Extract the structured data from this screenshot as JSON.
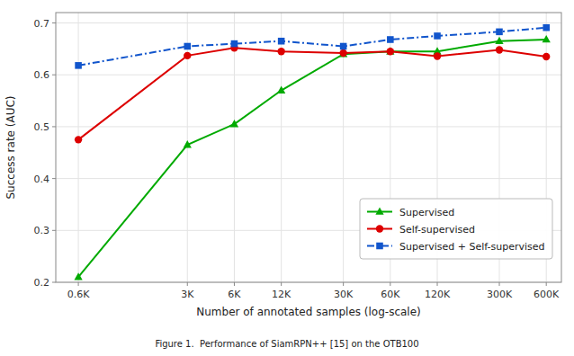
{
  "chart_data": {
    "type": "line",
    "title": "Figure 1.  Performance of SiamRPN++ [15] on the OTB100",
    "xlabel": "Number of annotated samples (log-scale)",
    "ylabel": "Success rate (AUC)",
    "x": [
      600,
      3000,
      6000,
      12000,
      30000,
      60000,
      120000,
      300000,
      600000
    ],
    "series": [
      {
        "name": "Supervised",
        "color": "#00aa00",
        "marker": "triangle",
        "line_style": "solid",
        "values": [
          0.21,
          0.465,
          0.505,
          0.57,
          0.64,
          0.645,
          0.645,
          0.665,
          0.668
        ]
      },
      {
        "name": "Self-supervised",
        "color": "#dd0000",
        "marker": "circle",
        "line_style": "solid",
        "values": [
          0.475,
          0.637,
          0.652,
          0.645,
          0.642,
          0.645,
          0.636,
          0.648,
          0.635
        ]
      },
      {
        "name": "Supervised + Self-supervised",
        "color": "#1155cc",
        "marker": "square",
        "line_style": "dashdot",
        "values": [
          0.618,
          0.655,
          0.66,
          0.665,
          0.655,
          0.668,
          0.675,
          0.683,
          0.691
        ]
      }
    ],
    "log": "x",
    "xlim": [
      430,
      750000
    ],
    "xticks": [
      {
        "value": 600,
        "label": "0.6K"
      },
      {
        "value": 3000,
        "label": "3K"
      },
      {
        "value": 6000,
        "label": "6K"
      },
      {
        "value": 12000,
        "label": "12K"
      },
      {
        "value": 30000,
        "label": "30K"
      },
      {
        "value": 60000,
        "label": "60K"
      },
      {
        "value": 120000,
        "label": "120K"
      },
      {
        "value": 300000,
        "label": "300K"
      },
      {
        "value": 600000,
        "label": "600K"
      }
    ],
    "ylim": [
      0.2,
      0.72
    ],
    "yticks": [
      0.2,
      0.3,
      0.4,
      0.5,
      0.6,
      0.7
    ],
    "grid": true,
    "legend": "lower right"
  }
}
